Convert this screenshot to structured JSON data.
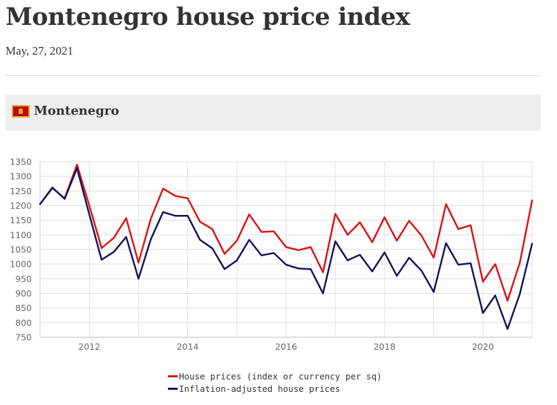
{
  "page": {
    "title": "Montenegro house price index",
    "date": "May, 27, 2021",
    "section_title": "Montenegro",
    "flag_icon": "montenegro-flag-icon"
  },
  "chart_data": {
    "type": "line",
    "title": "",
    "xlabel": "",
    "ylabel": "",
    "ylim": [
      750,
      1350
    ],
    "xlim": [
      2011,
      2021
    ],
    "yticks": [
      750,
      800,
      850,
      900,
      950,
      1000,
      1050,
      1100,
      1150,
      1200,
      1250,
      1300,
      1350
    ],
    "xticks": [
      2012,
      2014,
      2016,
      2018,
      2020
    ],
    "grid": true,
    "legend_position": "bottom-center",
    "x": [
      2011.0,
      2011.25,
      2011.5,
      2011.75,
      2012.0,
      2012.25,
      2012.5,
      2012.75,
      2013.0,
      2013.25,
      2013.5,
      2013.75,
      2014.0,
      2014.25,
      2014.5,
      2014.75,
      2015.0,
      2015.25,
      2015.5,
      2015.75,
      2016.0,
      2016.25,
      2016.5,
      2016.75,
      2017.0,
      2017.25,
      2017.5,
      2017.75,
      2018.0,
      2018.25,
      2018.5,
      2018.75,
      2019.0,
      2019.25,
      2019.5,
      2019.75,
      2020.0,
      2020.25,
      2020.5,
      2020.75,
      2021.0
    ],
    "series": [
      {
        "name": "House prices (index or currency per sq)",
        "color": "#dd1111",
        "values": [
          1205,
          1260,
          1225,
          1340,
          1200,
          1055,
          1090,
          1157,
          1005,
          1155,
          1258,
          1233,
          1225,
          1145,
          1120,
          1035,
          1080,
          1170,
          1110,
          1112,
          1058,
          1048,
          1058,
          972,
          1172,
          1100,
          1143,
          1075,
          1160,
          1080,
          1148,
          1098,
          1022,
          1205,
          1120,
          1133,
          940,
          1000,
          875,
          1005,
          1218
        ]
      },
      {
        "name": "Inflation-adjusted house prices",
        "color": "#13135f",
        "values": [
          1205,
          1262,
          1223,
          1328,
          1170,
          1015,
          1042,
          1093,
          950,
          1085,
          1178,
          1165,
          1165,
          1083,
          1054,
          983,
          1013,
          1083,
          1030,
          1038,
          998,
          985,
          983,
          900,
          1078,
          1013,
          1032,
          975,
          1040,
          960,
          1022,
          978,
          905,
          1072,
          998,
          1003,
          833,
          893,
          778,
          898,
          1070
        ]
      }
    ]
  }
}
